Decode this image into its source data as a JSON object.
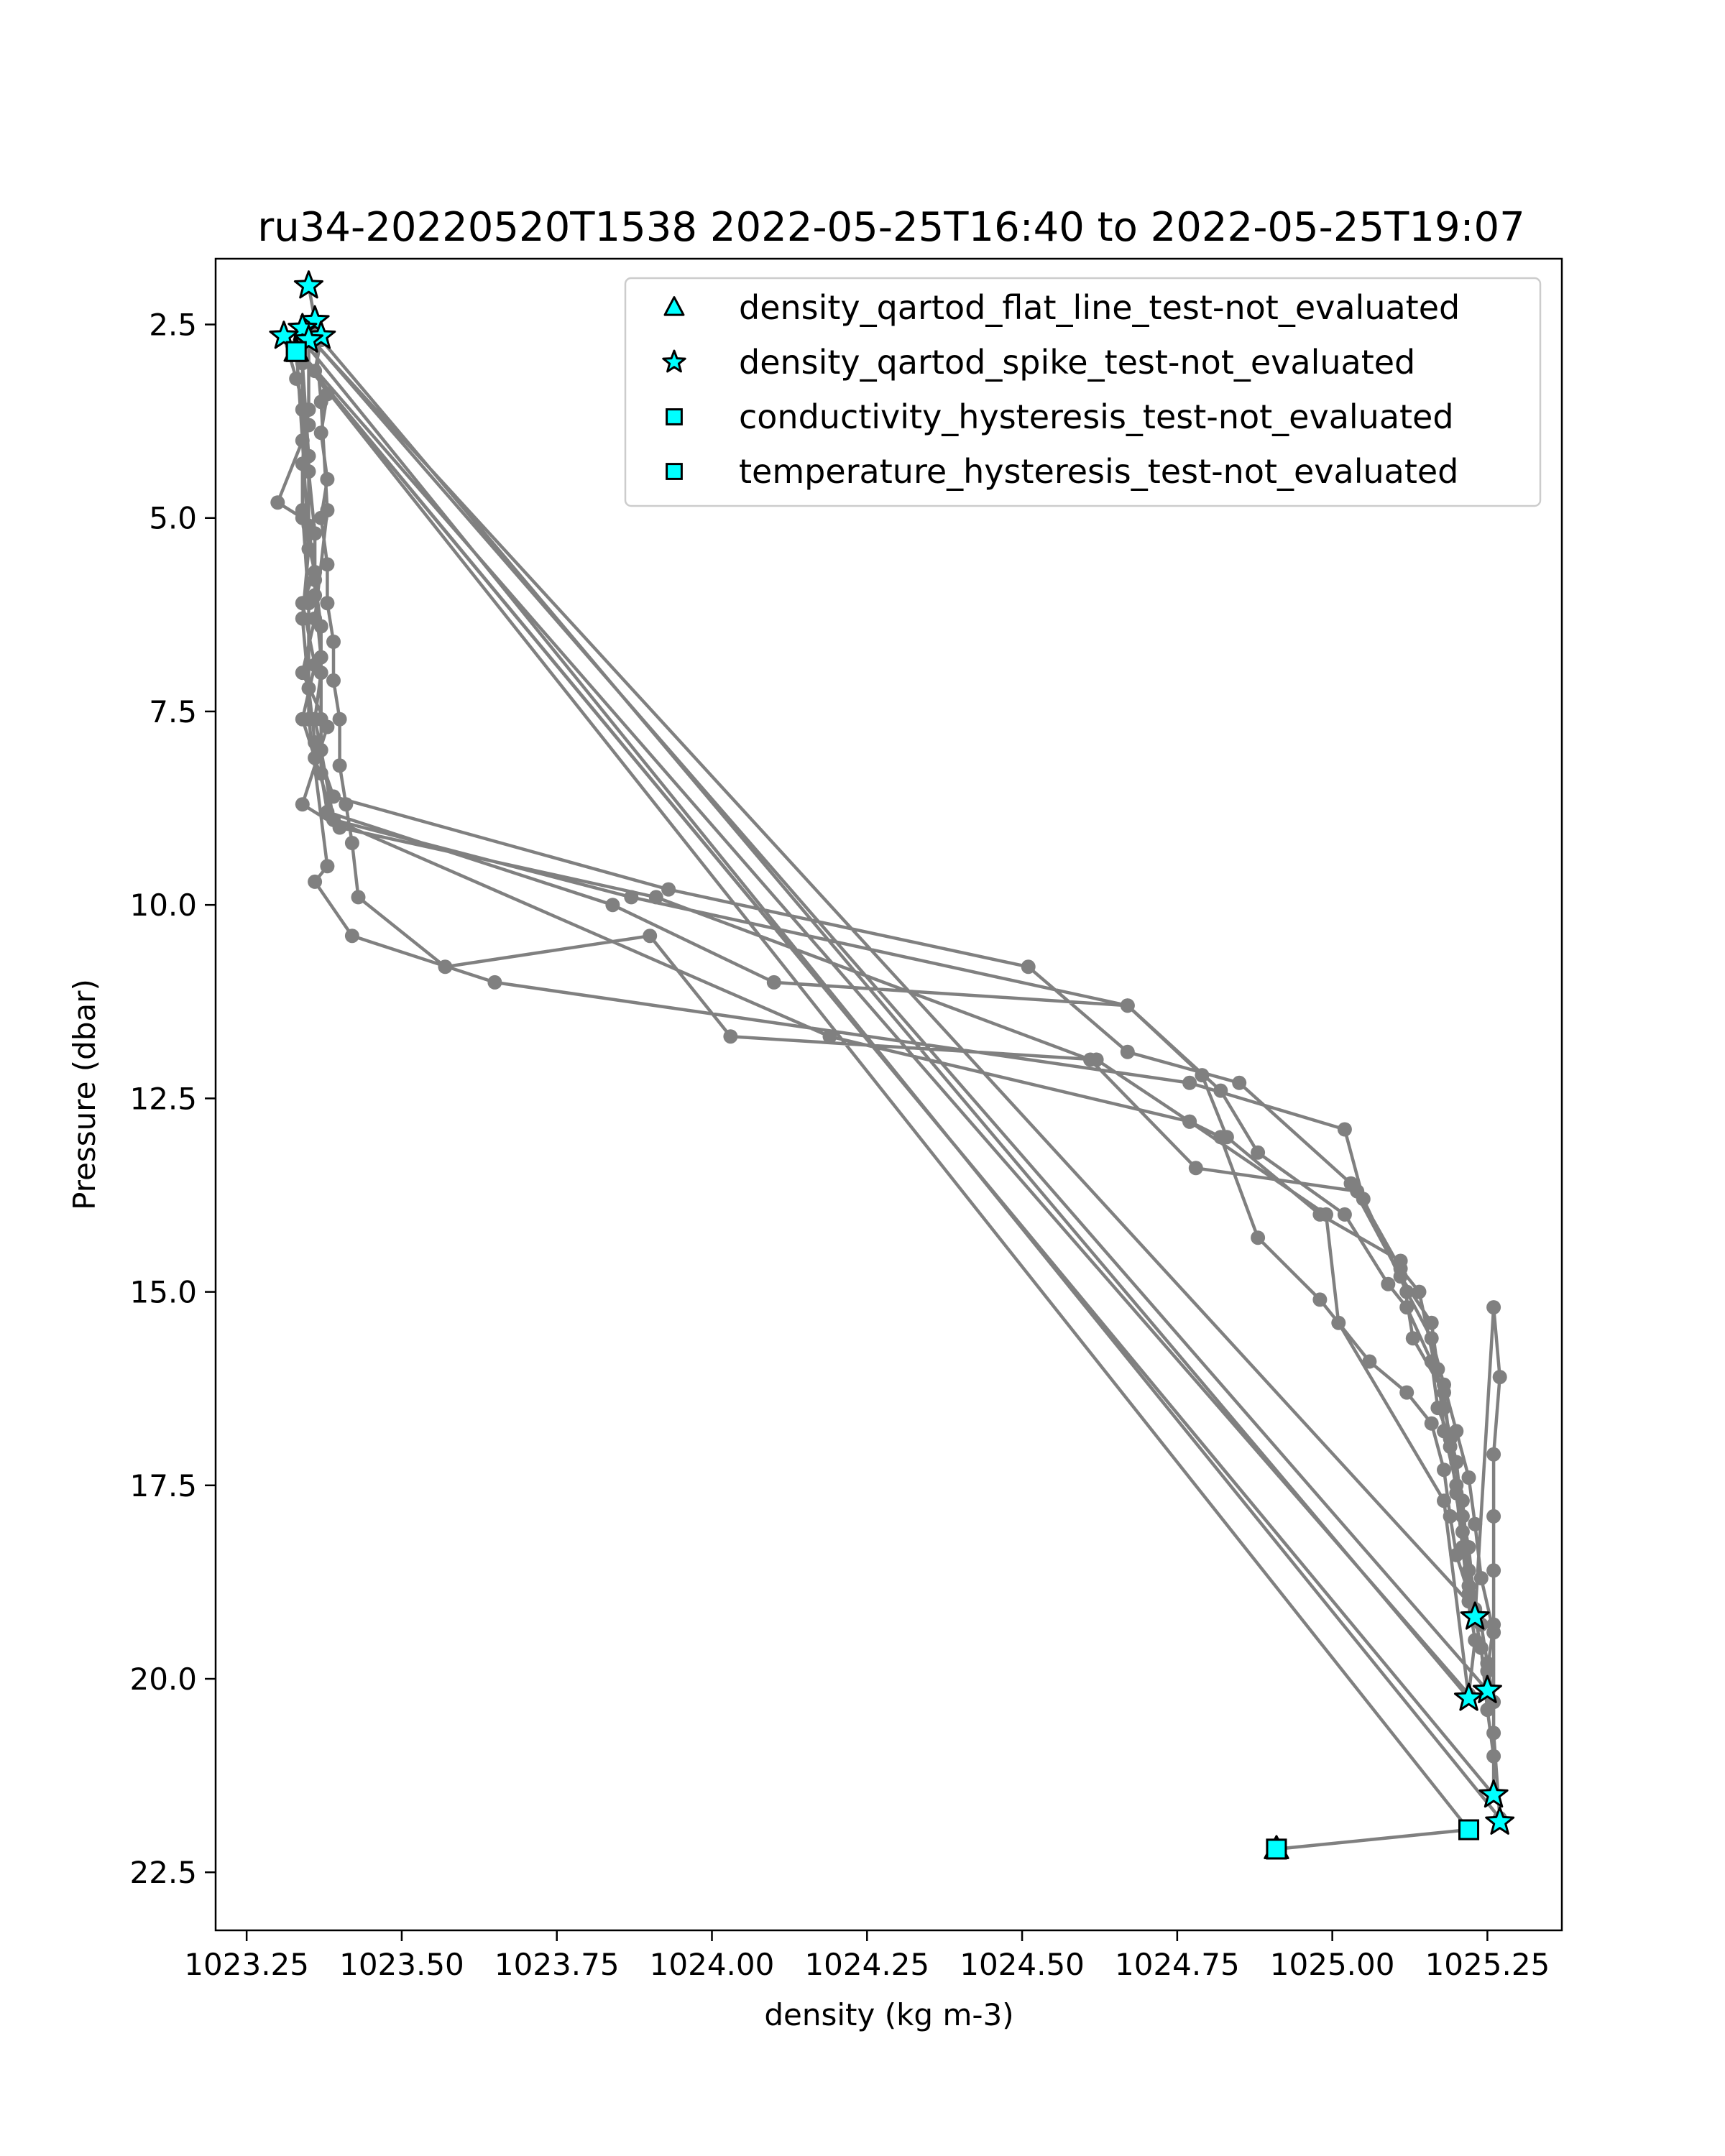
{
  "chart_data": {
    "type": "line",
    "title": "ru34-20220520T1538 2022-05-25T16:40 to 2022-05-25T19:07",
    "xlabel": "density (kg m-3)",
    "ylabel": "Pressure (dbar)",
    "xlim": [
      1023.2,
      1025.37
    ],
    "ylim": [
      23.25,
      1.65
    ],
    "y_inverted": true,
    "grid": false,
    "legend_position": "top-right",
    "xticks": [
      1023.25,
      1023.5,
      1023.75,
      1024.0,
      1024.25,
      1024.5,
      1024.75,
      1025.0,
      1025.25
    ],
    "xtick_labels": [
      "1023.25",
      "1023.50",
      "1023.75",
      "1024.00",
      "1024.25",
      "1024.50",
      "1024.75",
      "1025.00",
      "1025.25"
    ],
    "yticks": [
      2.5,
      5.0,
      7.5,
      10.0,
      12.5,
      15.0,
      17.5,
      20.0,
      22.5
    ],
    "ytick_labels": [
      "2.5",
      "5.0",
      "7.5",
      "10.0",
      "12.5",
      "15.0",
      "17.5",
      "20.0",
      "22.5"
    ],
    "colors": {
      "line": "#808080",
      "marker_fill": "#00FFFF",
      "marker_edge": "#000000"
    },
    "profile_line": {
      "points": [
        [
          1023.35,
          2.0
        ],
        [
          1023.36,
          2.45
        ],
        [
          1023.35,
          2.6
        ],
        [
          1023.37,
          2.7
        ],
        [
          1023.36,
          3.1
        ],
        [
          1023.38,
          3.4
        ],
        [
          1023.37,
          3.9
        ],
        [
          1023.38,
          4.5
        ],
        [
          1023.37,
          5.0
        ],
        [
          1023.38,
          5.6
        ],
        [
          1023.38,
          6.1
        ],
        [
          1023.39,
          6.6
        ],
        [
          1023.39,
          7.1
        ],
        [
          1023.4,
          7.6
        ],
        [
          1023.4,
          8.2
        ],
        [
          1023.41,
          8.7
        ],
        [
          1023.42,
          9.2
        ],
        [
          1023.43,
          9.9
        ],
        [
          1023.57,
          10.8
        ],
        [
          1023.9,
          10.4
        ],
        [
          1024.03,
          11.7
        ],
        [
          1024.62,
          12.0
        ],
        [
          1024.77,
          12.8
        ],
        [
          1024.82,
          13.0
        ],
        [
          1024.88,
          14.3
        ],
        [
          1024.98,
          15.1
        ],
        [
          1025.06,
          15.9
        ],
        [
          1025.12,
          16.3
        ],
        [
          1025.16,
          16.7
        ],
        [
          1025.18,
          17.3
        ],
        [
          1025.19,
          17.9
        ],
        [
          1025.2,
          18.4
        ],
        [
          1025.22,
          18.9
        ],
        [
          1025.23,
          19.2
        ],
        [
          1025.26,
          15.2
        ],
        [
          1025.27,
          16.1
        ],
        [
          1025.26,
          17.1
        ],
        [
          1025.26,
          17.9
        ],
        [
          1025.26,
          18.6
        ],
        [
          1025.26,
          19.3
        ],
        [
          1025.25,
          19.9
        ],
        [
          1025.25,
          20.15
        ],
        [
          1023.34,
          2.55
        ],
        [
          1023.34,
          3.6
        ],
        [
          1023.35,
          4.4
        ],
        [
          1023.36,
          5.2
        ],
        [
          1023.36,
          6.0
        ],
        [
          1023.37,
          6.8
        ],
        [
          1023.37,
          7.6
        ],
        [
          1023.37,
          8.3
        ],
        [
          1023.38,
          8.8
        ],
        [
          1023.84,
          10.0
        ],
        [
          1024.1,
          11.0
        ],
        [
          1024.67,
          11.3
        ],
        [
          1024.79,
          12.2
        ],
        [
          1024.83,
          13.0
        ],
        [
          1024.98,
          14.0
        ],
        [
          1025.11,
          14.6
        ],
        [
          1025.13,
          15.6
        ],
        [
          1025.18,
          16.3
        ],
        [
          1025.19,
          17.0
        ],
        [
          1025.2,
          17.6
        ],
        [
          1025.21,
          18.3
        ],
        [
          1025.22,
          19.0
        ],
        [
          1025.23,
          19.5
        ],
        [
          1025.22,
          20.2
        ],
        [
          1023.33,
          2.8
        ],
        [
          1023.34,
          4.0
        ],
        [
          1023.35,
          5.4
        ],
        [
          1023.34,
          6.3
        ],
        [
          1023.35,
          7.2
        ],
        [
          1023.36,
          7.9
        ],
        [
          1023.39,
          8.6
        ],
        [
          1023.93,
          9.8
        ],
        [
          1024.51,
          10.8
        ],
        [
          1024.67,
          11.9
        ],
        [
          1024.85,
          12.3
        ],
        [
          1025.03,
          13.6
        ],
        [
          1025.11,
          14.8
        ],
        [
          1025.16,
          15.4
        ],
        [
          1025.17,
          16.0
        ],
        [
          1025.18,
          16.8
        ],
        [
          1025.2,
          17.5
        ],
        [
          1025.21,
          18.1
        ],
        [
          1025.22,
          18.8
        ],
        [
          1025.24,
          19.6
        ],
        [
          1025.25,
          20.4
        ],
        [
          1025.26,
          21.0
        ],
        [
          1025.26,
          21.5
        ],
        [
          1023.31,
          2.65
        ],
        [
          1023.33,
          3.2
        ],
        [
          1023.35,
          3.8
        ],
        [
          1023.3,
          4.8
        ],
        [
          1023.34,
          5.0
        ],
        [
          1023.36,
          5.7
        ],
        [
          1023.34,
          6.1
        ],
        [
          1023.36,
          6.9
        ],
        [
          1023.34,
          7.6
        ],
        [
          1023.36,
          8.1
        ],
        [
          1023.39,
          8.9
        ],
        [
          1023.87,
          9.9
        ],
        [
          1024.67,
          11.3
        ],
        [
          1024.82,
          12.4
        ],
        [
          1024.88,
          13.2
        ],
        [
          1025.02,
          14.0
        ],
        [
          1025.09,
          14.9
        ],
        [
          1025.12,
          15.2
        ],
        [
          1025.16,
          15.9
        ],
        [
          1025.17,
          16.5
        ],
        [
          1025.19,
          16.9
        ],
        [
          1025.21,
          17.7
        ],
        [
          1025.22,
          18.6
        ],
        [
          1025.24,
          19.3
        ],
        [
          1025.25,
          19.8
        ],
        [
          1025.26,
          20.3
        ],
        [
          1025.26,
          20.7
        ],
        [
          1025.27,
          21.8
        ],
        [
          1023.34,
          2.7
        ],
        [
          1023.34,
          3.0
        ],
        [
          1023.35,
          4.2
        ],
        [
          1023.35,
          5.1
        ],
        [
          1023.36,
          5.8
        ],
        [
          1023.37,
          6.4
        ],
        [
          1023.37,
          7.0
        ],
        [
          1023.36,
          7.6
        ],
        [
          1023.37,
          8.0
        ],
        [
          1023.39,
          8.9
        ],
        [
          1024.19,
          11.7
        ],
        [
          1024.77,
          12.8
        ],
        [
          1024.99,
          14.0
        ],
        [
          1025.01,
          15.4
        ],
        [
          1025.18,
          17.7
        ],
        [
          1025.22,
          20.25
        ],
        [
          1023.36,
          2.6
        ],
        [
          1023.37,
          3.5
        ],
        [
          1023.38,
          4.9
        ],
        [
          1023.36,
          6.3
        ],
        [
          1023.34,
          7.0
        ],
        [
          1023.38,
          7.7
        ],
        [
          1023.34,
          8.7
        ],
        [
          1023.4,
          9.0
        ],
        [
          1023.91,
          9.9
        ],
        [
          1024.61,
          12.0
        ],
        [
          1024.78,
          13.4
        ],
        [
          1025.04,
          13.7
        ],
        [
          1025.11,
          14.7
        ],
        [
          1025.14,
          15.0
        ],
        [
          1025.18,
          16.5
        ],
        [
          1025.2,
          17.2
        ],
        [
          1025.21,
          17.9
        ],
        [
          1025.22,
          18.3
        ],
        [
          1025.23,
          19.1
        ],
        [
          1023.35,
          2.65
        ],
        [
          1023.35,
          3.6
        ],
        [
          1023.34,
          4.3
        ],
        [
          1023.34,
          4.9
        ],
        [
          1023.35,
          6.1
        ],
        [
          1023.35,
          7.6
        ],
        [
          1023.38,
          9.5
        ],
        [
          1023.36,
          9.7
        ],
        [
          1023.42,
          10.4
        ],
        [
          1023.65,
          11.0
        ],
        [
          1024.77,
          12.3
        ],
        [
          1025.02,
          12.9
        ],
        [
          1025.05,
          13.8
        ],
        [
          1025.12,
          15.0
        ],
        [
          1025.16,
          15.6
        ],
        [
          1025.18,
          16.2
        ],
        [
          1025.2,
          16.8
        ],
        [
          1025.22,
          17.4
        ],
        [
          1025.23,
          18.0
        ],
        [
          1025.24,
          18.7
        ],
        [
          1025.26,
          19.4
        ],
        [
          1025.26,
          21.5
        ],
        [
          1023.33,
          2.85
        ],
        [
          1025.22,
          21.95
        ],
        [
          1024.91,
          22.2
        ]
      ]
    },
    "series": [
      {
        "name": "density_qartod_flat_line_test-not_evaluated",
        "marker": "triangle",
        "points": [
          [
            1024.91,
            22.2
          ],
          [
            1023.33,
            2.85
          ]
        ]
      },
      {
        "name": "density_qartod_spike_test-not_evaluated",
        "marker": "star",
        "points": [
          [
            1023.35,
            2.0
          ],
          [
            1023.36,
            2.45
          ],
          [
            1023.34,
            2.55
          ],
          [
            1023.31,
            2.65
          ],
          [
            1023.37,
            2.65
          ],
          [
            1023.35,
            2.7
          ],
          [
            1025.23,
            19.2
          ],
          [
            1025.25,
            20.15
          ],
          [
            1025.22,
            20.25
          ],
          [
            1025.26,
            21.5
          ],
          [
            1025.27,
            21.85
          ]
        ]
      },
      {
        "name": "conductivity_hysteresis_test-not_evaluated",
        "marker": "square",
        "points": [
          [
            1023.33,
            2.85
          ],
          [
            1025.22,
            21.95
          ],
          [
            1024.91,
            22.2
          ]
        ]
      },
      {
        "name": "temperature_hysteresis_test-not_evaluated",
        "marker": "square",
        "points": [
          [
            1023.33,
            2.85
          ],
          [
            1025.22,
            21.95
          ],
          [
            1024.91,
            22.2
          ]
        ]
      }
    ]
  }
}
